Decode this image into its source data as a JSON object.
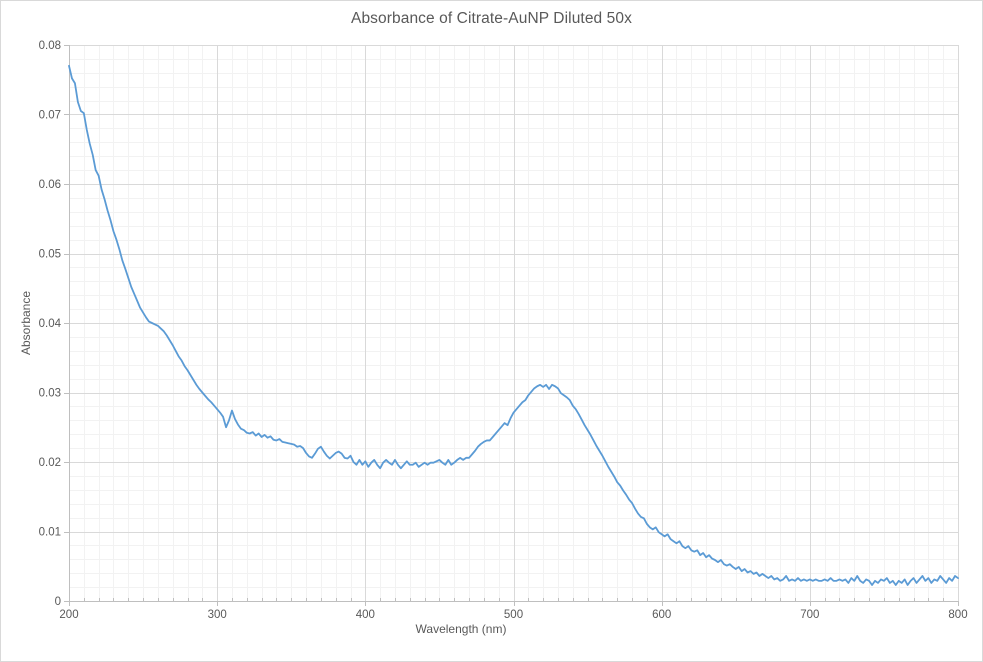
{
  "colors": {
    "series_line": "#5B9BD5",
    "text": "#595959",
    "grid_major": "#d9d9d9",
    "grid_minor": "#f2f2f2",
    "axis_line": "#bfbfbf",
    "tick_mark": "#bfbfbf",
    "background": "#ffffff",
    "chart_border": "#d9d9d9"
  },
  "chart_data": {
    "type": "line",
    "title": "Absorbance of Citrate-AuNP Diluted 50x",
    "xlabel": "Wavelength (nm)",
    "ylabel": "Absorbance",
    "xlim": [
      200,
      800
    ],
    "ylim": [
      0,
      0.08
    ],
    "x_major_ticks": [
      200,
      300,
      400,
      500,
      600,
      700,
      800
    ],
    "x_tick_labels": [
      "200",
      "300",
      "400",
      "500",
      "600",
      "700",
      "800"
    ],
    "y_major_ticks": [
      0,
      0.01,
      0.02,
      0.03,
      0.04,
      0.05,
      0.06,
      0.07,
      0.08
    ],
    "y_tick_labels": [
      "0",
      "0.01",
      "0.02",
      "0.03",
      "0.04",
      "0.05",
      "0.06",
      "0.07",
      "0.08"
    ],
    "x_minor_step": 10,
    "y_minor_step": 0.002,
    "grid": {
      "major": true,
      "minor": true
    },
    "legend": "none",
    "series": [
      {
        "color": "#5B9BD5",
        "x_start": 200,
        "x_step": 2,
        "values": [
          0.077,
          0.0752,
          0.0745,
          0.0718,
          0.0705,
          0.0702,
          0.0678,
          0.0658,
          0.0642,
          0.062,
          0.0612,
          0.0592,
          0.0578,
          0.0562,
          0.0548,
          0.0532,
          0.052,
          0.0506,
          0.049,
          0.0478,
          0.0465,
          0.0452,
          0.0442,
          0.0432,
          0.0422,
          0.0415,
          0.0408,
          0.0402,
          0.04,
          0.0398,
          0.0396,
          0.0392,
          0.0388,
          0.0382,
          0.0375,
          0.0368,
          0.036,
          0.0352,
          0.0346,
          0.0338,
          0.0332,
          0.0325,
          0.0318,
          0.0311,
          0.0305,
          0.03,
          0.0295,
          0.029,
          0.0286,
          0.0281,
          0.0276,
          0.0271,
          0.0265,
          0.025,
          0.026,
          0.0274,
          0.0262,
          0.0254,
          0.0248,
          0.0246,
          0.0242,
          0.0241,
          0.0243,
          0.0238,
          0.0241,
          0.0236,
          0.0239,
          0.0235,
          0.0237,
          0.0232,
          0.0231,
          0.0233,
          0.0229,
          0.0228,
          0.0227,
          0.0226,
          0.0225,
          0.0222,
          0.0223,
          0.022,
          0.0213,
          0.0208,
          0.0206,
          0.0212,
          0.0219,
          0.0222,
          0.0215,
          0.0209,
          0.0205,
          0.0209,
          0.0213,
          0.0215,
          0.0212,
          0.0206,
          0.0205,
          0.0209,
          0.02,
          0.0196,
          0.0203,
          0.0196,
          0.0201,
          0.0193,
          0.0199,
          0.0203,
          0.0196,
          0.0191,
          0.0199,
          0.0203,
          0.0199,
          0.0196,
          0.0203,
          0.0196,
          0.0191,
          0.0196,
          0.0201,
          0.0196,
          0.0196,
          0.0199,
          0.0193,
          0.0196,
          0.0199,
          0.0196,
          0.0199,
          0.0199,
          0.0201,
          0.0203,
          0.0199,
          0.0196,
          0.0203,
          0.0196,
          0.0199,
          0.0203,
          0.0206,
          0.0203,
          0.0206,
          0.0206,
          0.0211,
          0.0216,
          0.0222,
          0.0226,
          0.0229,
          0.0231,
          0.0231,
          0.0236,
          0.0241,
          0.0246,
          0.0251,
          0.0256,
          0.0253,
          0.0263,
          0.0271,
          0.0276,
          0.0281,
          0.0286,
          0.0289,
          0.0296,
          0.0301,
          0.0306,
          0.0309,
          0.0311,
          0.0308,
          0.0311,
          0.0305,
          0.0311,
          0.0309,
          0.0306,
          0.0299,
          0.0296,
          0.0293,
          0.0289,
          0.0281,
          0.0276,
          0.0269,
          0.0261,
          0.0253,
          0.0246,
          0.0239,
          0.0231,
          0.0223,
          0.0216,
          0.0209,
          0.0201,
          0.0193,
          0.0186,
          0.0179,
          0.0171,
          0.0166,
          0.0159,
          0.0153,
          0.0146,
          0.0141,
          0.0133,
          0.0126,
          0.0121,
          0.0119,
          0.0111,
          0.0106,
          0.0103,
          0.0106,
          0.0099,
          0.0096,
          0.0093,
          0.0096,
          0.0089,
          0.0086,
          0.0083,
          0.0086,
          0.0079,
          0.0076,
          0.0079,
          0.0073,
          0.0071,
          0.0073,
          0.0066,
          0.0069,
          0.0063,
          0.0066,
          0.0061,
          0.0059,
          0.0056,
          0.0059,
          0.0053,
          0.0051,
          0.0053,
          0.0049,
          0.0046,
          0.0049,
          0.0043,
          0.0046,
          0.0041,
          0.0043,
          0.0039,
          0.0041,
          0.0036,
          0.0039,
          0.0036,
          0.0033,
          0.0036,
          0.0031,
          0.0033,
          0.0029,
          0.0031,
          0.0036,
          0.0029,
          0.0031,
          0.0029,
          0.0033,
          0.0029,
          0.0031,
          0.0029,
          0.0031,
          0.0029,
          0.0031,
          0.0029,
          0.0029,
          0.0031,
          0.0029,
          0.0033,
          0.0029,
          0.0029,
          0.0031,
          0.0029,
          0.0031,
          0.0026,
          0.0033,
          0.0029,
          0.0036,
          0.0029,
          0.0026,
          0.0031,
          0.0029,
          0.0023,
          0.0029,
          0.0026,
          0.0031,
          0.0029,
          0.0033,
          0.0026,
          0.0029,
          0.0023,
          0.0029,
          0.0026,
          0.0031,
          0.0023,
          0.0029,
          0.0033,
          0.0026,
          0.0031,
          0.0036,
          0.0029,
          0.0033,
          0.0026,
          0.0031,
          0.0029,
          0.0036,
          0.0031,
          0.0026,
          0.0033,
          0.0029,
          0.0036,
          0.0033
        ]
      }
    ]
  }
}
